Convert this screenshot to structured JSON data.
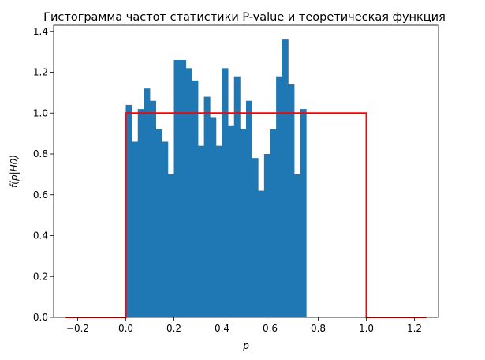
{
  "chart_data": {
    "type": "bar",
    "title": "Гистограмма частот статистики P-value и теоретическая функция",
    "xlabel": "p",
    "ylabel": "f(p|H0)",
    "xlim": [
      -0.3,
      1.3
    ],
    "ylim": [
      0,
      1.43
    ],
    "xticks": [
      -0.2,
      0.0,
      0.2,
      0.4,
      0.6,
      0.8,
      1.0,
      1.2
    ],
    "xtick_labels": [
      "−0.2",
      "0.0",
      "0.2",
      "0.4",
      "0.6",
      "0.8",
      "1.0",
      "1.2"
    ],
    "yticks": [
      0.0,
      0.2,
      0.4,
      0.6,
      0.8,
      1.0,
      1.2,
      1.4
    ],
    "ytick_labels": [
      "0.0",
      "0.2",
      "0.4",
      "0.6",
      "0.8",
      "1.0",
      "1.2",
      "1.4"
    ],
    "grid": false,
    "histogram": {
      "color": "#1f77b4",
      "bin_width": 0.025,
      "bin_starts": [
        0.0,
        0.025,
        0.05,
        0.075,
        0.1,
        0.125,
        0.15,
        0.175,
        0.2,
        0.225,
        0.25,
        0.275,
        0.3,
        0.325,
        0.35,
        0.375,
        0.4,
        0.425,
        0.45,
        0.475,
        0.5,
        0.525,
        0.55,
        0.575,
        0.6,
        0.625,
        0.65,
        0.675,
        0.7,
        0.725,
        0.75,
        0.775,
        0.8,
        0.825,
        0.85,
        0.875,
        0.9,
        0.925,
        0.95,
        0.975
      ],
      "values": [
        1.04,
        0.86,
        1.02,
        1.12,
        1.06,
        0.92,
        0.86,
        0.7,
        1.26,
        1.26,
        1.22,
        1.16,
        0.84,
        1.08,
        0.98,
        0.84,
        1.22,
        0.94,
        1.18,
        0.92,
        1.06,
        0.78,
        0.62,
        0.8,
        0.92,
        1.18,
        1.36,
        1.14,
        0.7,
        1.02,
        0.0,
        0.0,
        0.0,
        0.0,
        0.0,
        0.0,
        0.0,
        0.0,
        0.0,
        0.0
      ]
    },
    "theoretical_line": {
      "color": "#ff0000",
      "x": [
        -0.25,
        0.0,
        0.0,
        1.0,
        1.0,
        1.25
      ],
      "y": [
        0.0,
        0.0,
        1.0,
        1.0,
        0.0,
        0.0
      ]
    }
  }
}
